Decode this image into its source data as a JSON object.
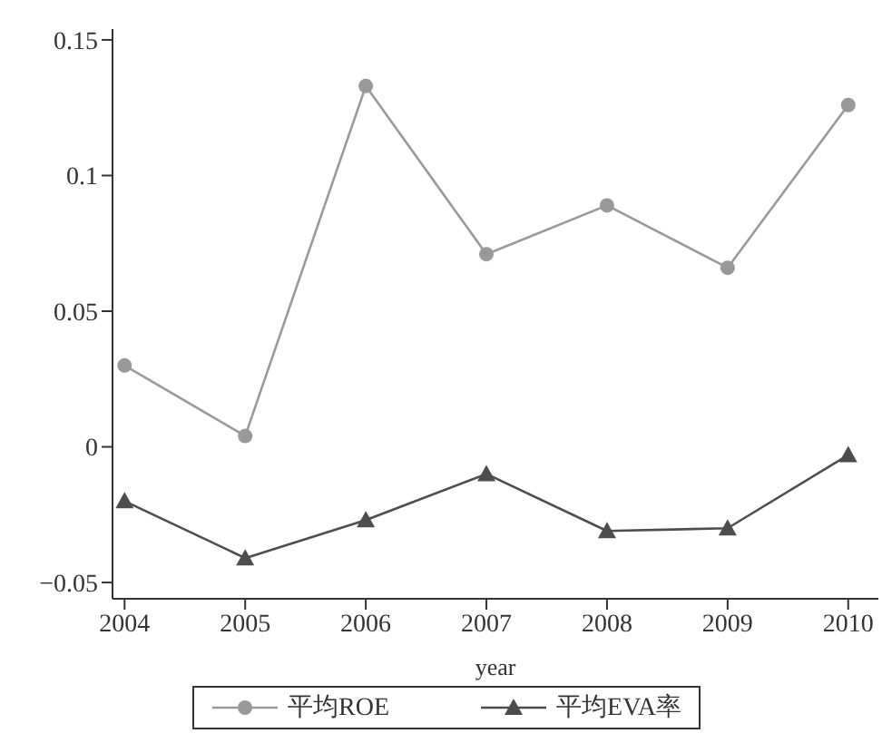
{
  "chart_data": {
    "type": "line",
    "xlabel": "year",
    "x": [
      2004,
      2005,
      2006,
      2007,
      2008,
      2009,
      2010
    ],
    "xlim": [
      2003.9,
      2010.25
    ],
    "xticks": [
      2004,
      2005,
      2006,
      2007,
      2008,
      2009,
      2010
    ],
    "ylim": [
      -0.056,
      0.154
    ],
    "yticks": [
      {
        "value": -0.05,
        "label": "−0.05"
      },
      0,
      0.05,
      0.1,
      0.15
    ],
    "series": [
      {
        "name": "平均ROE",
        "color": "#999999",
        "marker": "circle",
        "values": [
          0.03,
          0.004,
          0.133,
          0.071,
          0.089,
          0.066,
          0.126
        ]
      },
      {
        "name": "平均EVA率",
        "color": "#4d4d4d",
        "marker": "triangle",
        "values": [
          -0.02,
          -0.041,
          -0.027,
          -0.01,
          -0.031,
          -0.03,
          -0.003
        ]
      }
    ],
    "grid": false,
    "legend": "bottom"
  }
}
